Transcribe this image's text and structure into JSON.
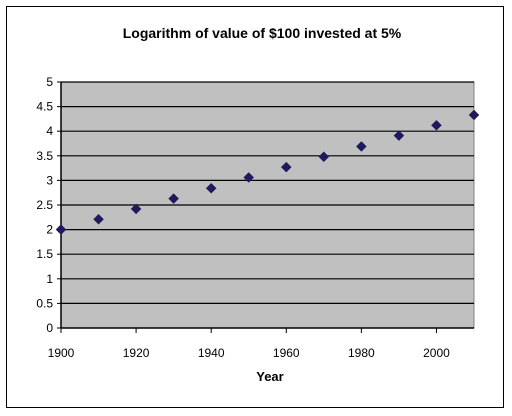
{
  "chart_data": {
    "type": "scatter",
    "title": "Logarithm of value of $100 invested at 5%",
    "xlabel": "Year",
    "ylabel": "",
    "xlim": [
      1900,
      2010
    ],
    "ylim": [
      0,
      5
    ],
    "x_ticks": [
      1900,
      1920,
      1940,
      1960,
      1980,
      2000
    ],
    "y_ticks": [
      "0",
      "0.5",
      "1",
      "1.5",
      "2",
      "2.5",
      "3",
      "3.5",
      "4",
      "4.5",
      "5"
    ],
    "grid": "horizontal",
    "legend": "none",
    "plot_background": "#c0c0c0",
    "marker_color": "#1f1a5c",
    "points": [
      {
        "x": 1900,
        "y": 2.0
      },
      {
        "x": 1910,
        "y": 2.21
      },
      {
        "x": 1920,
        "y": 2.42
      },
      {
        "x": 1930,
        "y": 2.63
      },
      {
        "x": 1940,
        "y": 2.84
      },
      {
        "x": 1950,
        "y": 3.06
      },
      {
        "x": 1960,
        "y": 3.27
      },
      {
        "x": 1970,
        "y": 3.48
      },
      {
        "x": 1980,
        "y": 3.69
      },
      {
        "x": 1990,
        "y": 3.91
      },
      {
        "x": 2000,
        "y": 4.12
      },
      {
        "x": 2010,
        "y": 4.33
      }
    ]
  }
}
